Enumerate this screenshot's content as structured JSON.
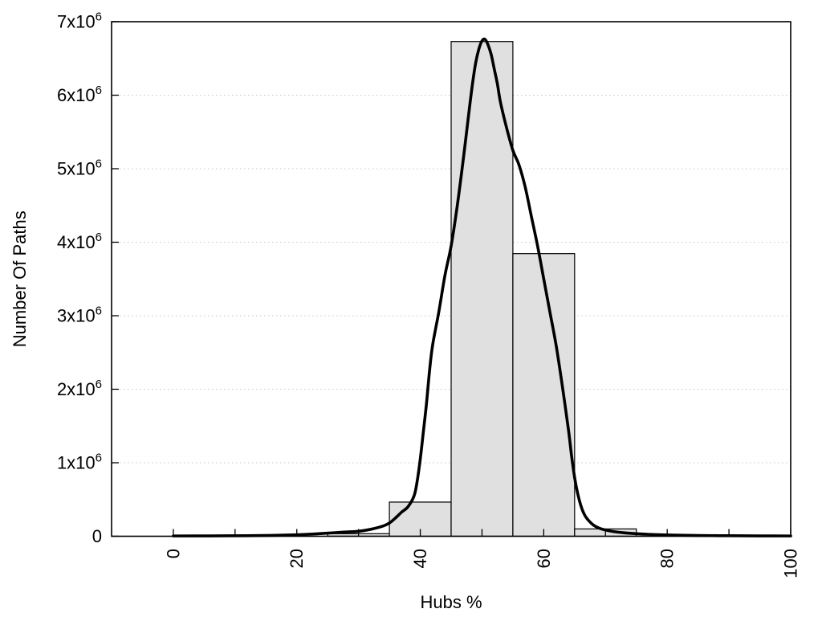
{
  "figure": {
    "background": "#ffffff"
  },
  "chart_data": {
    "type": "bar",
    "subtype": "histogram-with-fit-curve",
    "title": "",
    "xlabel": "Hubs %",
    "ylabel": "Number Of Paths",
    "xlim": [
      -10,
      100
    ],
    "ylim": [
      0,
      7000000
    ],
    "x_tick_step": 10,
    "x_major_tick_labels": [
      {
        "value": 0,
        "label": "0"
      },
      {
        "value": 20,
        "label": "20"
      },
      {
        "value": 40,
        "label": "40"
      },
      {
        "value": 60,
        "label": "60"
      },
      {
        "value": 80,
        "label": "80"
      },
      {
        "value": 100,
        "label": "100"
      }
    ],
    "x_tick_label_rotation": -90,
    "y_ticks": [
      {
        "value": 0,
        "base": "0",
        "sup": ""
      },
      {
        "value": 1000000,
        "base": "1x10",
        "sup": "6"
      },
      {
        "value": 2000000,
        "base": "2x10",
        "sup": "6"
      },
      {
        "value": 3000000,
        "base": "3x10",
        "sup": "6"
      },
      {
        "value": 4000000,
        "base": "4x10",
        "sup": "6"
      },
      {
        "value": 5000000,
        "base": "5x10",
        "sup": "6"
      },
      {
        "value": 6000000,
        "base": "6x10",
        "sup": "6"
      },
      {
        "value": 7000000,
        "base": "7x10",
        "sup": "6"
      }
    ],
    "grid": {
      "horizontal": true,
      "vertical": false,
      "style": "dotted",
      "color": "#c8c8c8"
    },
    "legend": "none",
    "histogram": {
      "bin_edges": [
        25,
        35,
        45,
        55,
        65,
        75
      ],
      "values": [
        35000,
        465000,
        6730000,
        3845000,
        100000
      ],
      "fill_color": "#e0e0e0",
      "border_color": "#000000"
    },
    "curve": {
      "name": "smooth-fit-curve",
      "color": "#000000",
      "stroke_width": 3.6,
      "points_x_percent_y_paths": [
        [
          0,
          4000
        ],
        [
          6,
          5000
        ],
        [
          12,
          8000
        ],
        [
          16,
          12000
        ],
        [
          20,
          20000
        ],
        [
          23,
          32000
        ],
        [
          26,
          48000
        ],
        [
          28,
          58000
        ],
        [
          30,
          68000
        ],
        [
          32,
          95000
        ],
        [
          34,
          140000
        ],
        [
          35,
          180000
        ],
        [
          36,
          250000
        ],
        [
          37,
          330000
        ],
        [
          38,
          400000
        ],
        [
          39,
          550000
        ],
        [
          39.5,
          750000
        ],
        [
          40,
          1050000
        ],
        [
          40.5,
          1420000
        ],
        [
          41,
          1800000
        ],
        [
          41.5,
          2250000
        ],
        [
          42,
          2600000
        ],
        [
          43,
          3050000
        ],
        [
          44,
          3550000
        ],
        [
          45,
          3950000
        ],
        [
          46,
          4500000
        ],
        [
          47,
          5150000
        ],
        [
          48,
          5850000
        ],
        [
          48.5,
          6180000
        ],
        [
          49,
          6450000
        ],
        [
          49.5,
          6630000
        ],
        [
          50,
          6740000
        ],
        [
          50.5,
          6760000
        ],
        [
          51,
          6680000
        ],
        [
          51.5,
          6550000
        ],
        [
          52,
          6350000
        ],
        [
          52.5,
          6150000
        ],
        [
          53,
          5900000
        ],
        [
          54,
          5550000
        ],
        [
          55,
          5250000
        ],
        [
          56,
          5050000
        ],
        [
          57,
          4750000
        ],
        [
          58,
          4350000
        ],
        [
          59,
          3950000
        ],
        [
          60,
          3500000
        ],
        [
          61,
          3050000
        ],
        [
          62,
          2600000
        ],
        [
          63,
          2050000
        ],
        [
          64,
          1450000
        ],
        [
          64.5,
          1100000
        ],
        [
          65,
          800000
        ],
        [
          65.5,
          580000
        ],
        [
          66,
          420000
        ],
        [
          66.5,
          310000
        ],
        [
          67,
          240000
        ],
        [
          68,
          155000
        ],
        [
          69,
          110000
        ],
        [
          70,
          85000
        ],
        [
          71,
          68000
        ],
        [
          72,
          56000
        ],
        [
          73,
          47000
        ],
        [
          74,
          40000
        ],
        [
          75,
          35000
        ],
        [
          77,
          26000
        ],
        [
          79,
          20000
        ],
        [
          82,
          14000
        ],
        [
          85,
          10000
        ],
        [
          90,
          7000
        ],
        [
          95,
          5000
        ],
        [
          100,
          4000
        ]
      ]
    },
    "axis_color": "#000000",
    "text_color": "#000000"
  }
}
